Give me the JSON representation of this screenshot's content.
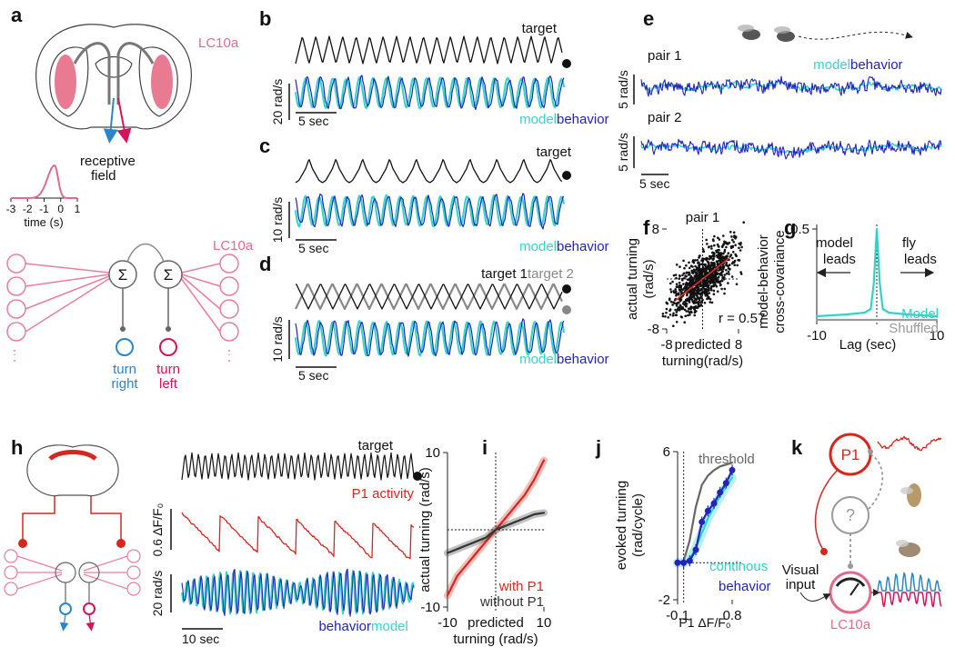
{
  "panels": {
    "a": {
      "label": "a",
      "cell_type": "LC10a",
      "receptive_field": [
        "receptive",
        "field"
      ],
      "rf_xlim": [
        -3,
        1
      ],
      "rf_xticks": [
        -3,
        -2,
        -1,
        0,
        1
      ],
      "rf_xlabel": "time (s)",
      "circuit_cell_type": "LC10a",
      "sum_left": "Σ",
      "sum_right": "Σ",
      "turn_right": [
        "turn",
        "right"
      ],
      "turn_left": [
        "turn",
        "left"
      ]
    },
    "b": {
      "label": "b",
      "target": "target",
      "scale_bar": "20 rad/s",
      "time_bar": "5 sec",
      "model": "model",
      "behavior": "behavior"
    },
    "c": {
      "label": "c",
      "target": "target",
      "scale_bar": "10 rad/s",
      "time_bar": "5 sec",
      "model": "model",
      "behavior": "behavior"
    },
    "d": {
      "label": "d",
      "target_1": "target 1",
      "target_2": "target 2",
      "scale_bar": "10 rad/s",
      "time_bar": "5 sec",
      "model": "model",
      "behavior": "behavior"
    },
    "e": {
      "label": "e",
      "model": "model",
      "behavior": "behavior",
      "pair_1": "pair 1",
      "pair_2": "pair 2",
      "scale_bar_1": "5 rad/s",
      "scale_bar_2": "5 rad/s",
      "time_bar": "5 sec"
    },
    "f": {
      "label": "f",
      "type": "scatter",
      "title": "pair 1",
      "xlabel": [
        "predicted",
        "turning(rad/s)"
      ],
      "ylabel": [
        "actual turning",
        "(rad/s)"
      ],
      "xlim": [
        -8,
        8
      ],
      "ylim": [
        -8,
        8
      ],
      "xticks": [
        -8,
        8
      ],
      "yticks": [
        -8,
        8
      ],
      "fit": {
        "color": "#e0302a",
        "x": [
          -6,
          6
        ],
        "y": [
          -3.4,
          3.4
        ]
      },
      "annotation": "r = 0.57"
    },
    "g": {
      "label": "g",
      "type": "line",
      "xlabel": "Lag (sec)",
      "ylabel": [
        "model-behavior",
        "cross-covariance"
      ],
      "xlim": [
        -10,
        10
      ],
      "ylim": [
        0,
        0.5
      ],
      "xticks": [
        -10,
        10
      ],
      "yticks": [
        0.5
      ],
      "annotations": {
        "model_leads": [
          "model",
          "leads"
        ],
        "fly_leads": [
          "fly",
          "leads"
        ]
      },
      "x": [
        -10,
        -5,
        -2,
        -1,
        -0.5,
        0,
        0.5,
        1,
        2,
        5,
        10
      ],
      "series": [
        {
          "name": "Model",
          "color": "#2fd3c8",
          "values": [
            0.02,
            0.03,
            0.04,
            0.06,
            0.2,
            0.5,
            0.2,
            0.06,
            0.04,
            0.03,
            0.02
          ]
        },
        {
          "name": "Shuffled",
          "color": "#9a9a9a",
          "values": [
            0,
            0,
            0,
            0,
            0,
            0,
            0,
            0,
            0,
            0,
            0
          ]
        }
      ]
    },
    "h": {
      "label": "h",
      "target": "target",
      "p1_activity": "P1 activity",
      "scale_bar_p1": "0.6 ΔF/F₀",
      "scale_bar_turning": "20 rad/s",
      "time_bar": "10 sec",
      "behavior": "behavior",
      "model": "model"
    },
    "i": {
      "label": "i",
      "type": "line",
      "xlabel": [
        "predicted",
        "turning (rad/s)"
      ],
      "ylabel": "actual turning (rad/s)",
      "xlim": [
        -10,
        10
      ],
      "ylim": [
        -10,
        10
      ],
      "xticks": [
        -10,
        10
      ],
      "yticks": [
        10,
        -10
      ],
      "x": [
        -10,
        -8,
        -6,
        -4,
        -2,
        0,
        2,
        4,
        6,
        8,
        10
      ],
      "series": [
        {
          "name": "with P1",
          "color": "#d7261e",
          "values": [
            -8.5,
            -6,
            -4.5,
            -3,
            -1.5,
            0,
            1.5,
            3,
            4.5,
            6.5,
            9
          ]
        },
        {
          "name": "without P1",
          "color": "#333333",
          "values": [
            -3,
            -2.5,
            -2,
            -1.5,
            -1,
            0,
            0.5,
            1,
            1.5,
            2,
            2.2
          ]
        }
      ]
    },
    "j": {
      "label": "j",
      "type": "line",
      "xlabel": "P1 ΔF/F₀",
      "ylabel": [
        "evoked turning",
        "(rad/cycle)"
      ],
      "xlim": [
        -0.1,
        0.8
      ],
      "ylim": [
        -2,
        6
      ],
      "xticks": [
        -0.1,
        0.8
      ],
      "yticks": [
        6,
        -2
      ],
      "x": [
        -0.1,
        0,
        0.1,
        0.2,
        0.3,
        0.4,
        0.5,
        0.6,
        0.7,
        0.8
      ],
      "series": [
        {
          "name": "threshold",
          "color": "#666666",
          "values": [
            0,
            0.1,
            1.2,
            3,
            4.2,
            4.7,
            5,
            5.2,
            5.3,
            5.4
          ]
        },
        {
          "name": "continous",
          "color": "#2fd3c8",
          "values": [
            0,
            0,
            0.2,
            0.8,
            1.6,
            2.4,
            3,
            3.6,
            4.1,
            4.6
          ]
        },
        {
          "name": "behavior",
          "color": "#2323b8",
          "marker": "circle",
          "values": [
            0,
            0,
            0.1,
            0.7,
            2.2,
            2.8,
            3.2,
            3.8,
            4.3,
            5
          ]
        }
      ]
    },
    "k": {
      "label": "k",
      "p1": "P1",
      "unknown": "?",
      "visual_input": [
        "Visual",
        "input"
      ],
      "cell_type": "LC10a"
    }
  }
}
